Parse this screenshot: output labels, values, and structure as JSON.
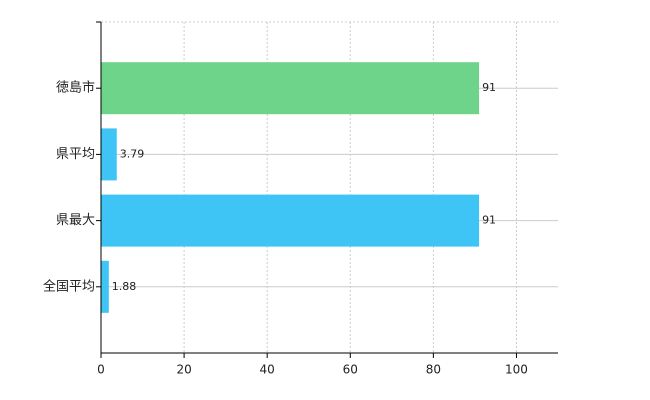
{
  "chart_data": {
    "type": "hbar",
    "categories": [
      "徳島市",
      "県平均",
      "県最大",
      "全国平均"
    ],
    "values": [
      91,
      3.79,
      91,
      1.88
    ],
    "colors": [
      "#6dd48a",
      "#3ec4f5",
      "#3ec4f5",
      "#3ec4f5"
    ],
    "xlim": [
      0,
      110
    ],
    "xticks": [
      0,
      20,
      40,
      60,
      80,
      100
    ],
    "grid": true
  }
}
